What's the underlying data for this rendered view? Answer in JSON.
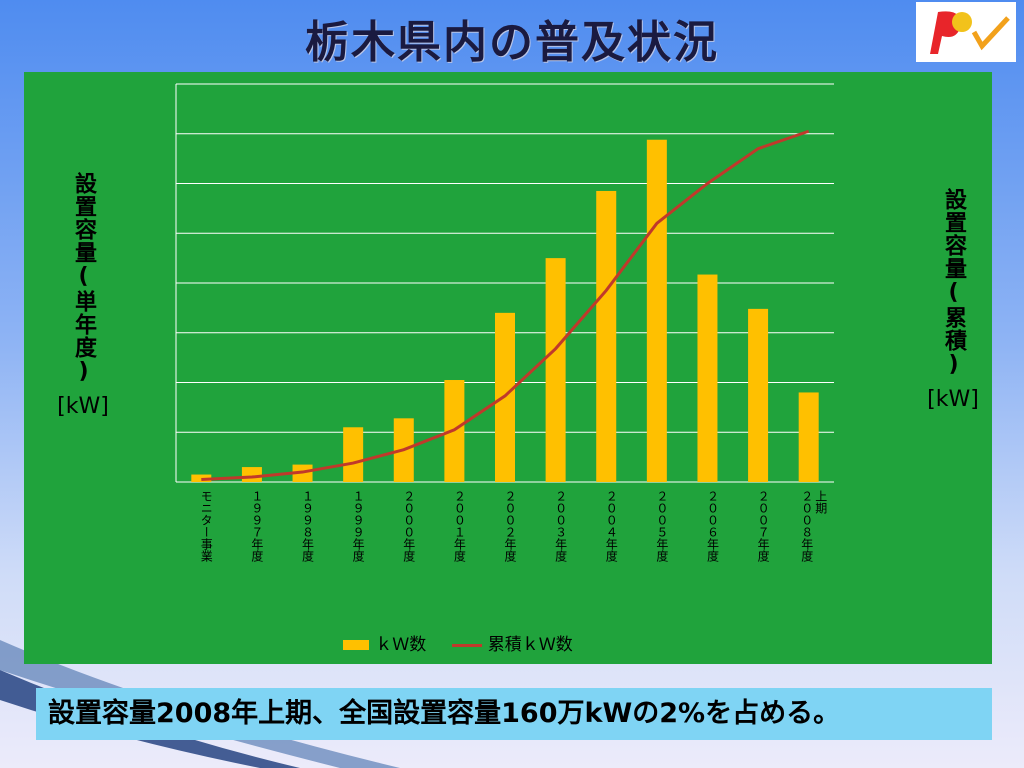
{
  "title": "栃木県内の普及状況",
  "caption": "設置容量2008年上期、全国設置容量160万kWの2%を占める。",
  "y_left_label": "設置容量(単年度)",
  "y_left_unit": "[kW]",
  "y_right_label": "設置容量(累積)",
  "y_right_unit": "[kW]",
  "legend": {
    "bar": "ｋＷ数",
    "line": "累積ｋＷ数"
  },
  "colors": {
    "panel": "#20a33c",
    "bar": "#ffc000",
    "line": "#c0392b",
    "grid": "#ffffff",
    "caption_bg": "#7fd4f4"
  },
  "chart_data": {
    "type": "bar",
    "categories": [
      "モニター事業",
      "１９９７年度",
      "１９９８年度",
      "１９９９年度",
      "２０００年度",
      "２００１年度",
      "２００２年度",
      "２００３年度",
      "２００４年度",
      "２００５年度",
      "２００６年度",
      "２００７年度",
      "２００８年度\n上期"
    ],
    "series": [
      {
        "name": "ｋＷ数",
        "type": "bar",
        "axis": "left",
        "values": [
          0.15,
          0.3,
          0.35,
          1.1,
          1.28,
          2.05,
          3.4,
          4.5,
          5.85,
          6.88,
          4.17,
          3.48,
          1.8
        ]
      },
      {
        "name": "累積ｋＷ数",
        "type": "line",
        "axis": "right",
        "values": [
          0.05,
          0.1,
          0.2,
          0.38,
          0.65,
          1.05,
          1.73,
          2.68,
          3.85,
          5.2,
          6.0,
          6.7,
          7.05
        ]
      }
    ],
    "ylim": [
      0,
      8
    ],
    "y_ticks": 8,
    "grid": true,
    "legend_position": "bottom"
  }
}
